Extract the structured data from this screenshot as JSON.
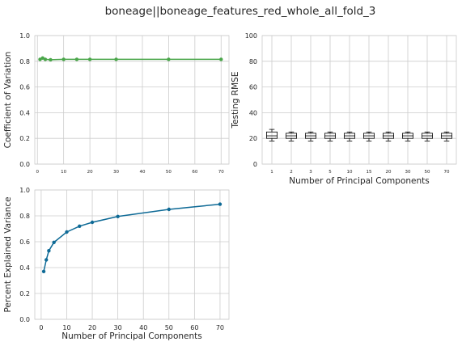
{
  "figure": {
    "title": "boneage||boneage_features_red_whole_all_fold_3"
  },
  "colors": {
    "cov_line": "#4aa64a",
    "cov_marker": "#4aa64a",
    "variance_line": "#0e6a96",
    "variance_marker": "#0e6a96",
    "box": "#000000",
    "grid": "#cccccc"
  },
  "chart_data": [
    {
      "id": "cov",
      "type": "line",
      "title": "",
      "xlabel": "",
      "ylabel": "Coefficient of Variation",
      "xlim": [
        -1,
        73
      ],
      "ylim": [
        0,
        1.0
      ],
      "xticks": [
        0,
        10,
        20,
        30,
        40,
        50,
        60,
        70
      ],
      "yticks": [
        0.0,
        0.2,
        0.4,
        0.6,
        0.8,
        1.0
      ],
      "grid": true,
      "series": [
        {
          "x": [
            1,
            2,
            3,
            5,
            10,
            15,
            20,
            30,
            50,
            70
          ],
          "y": [
            0.815,
            0.825,
            0.815,
            0.812,
            0.815,
            0.815,
            0.815,
            0.815,
            0.815,
            0.815
          ]
        }
      ]
    },
    {
      "id": "rmse",
      "type": "box",
      "title": "",
      "xlabel": "Number of Principal Components",
      "ylabel": "Testing RMSE",
      "ylim": [
        0,
        100
      ],
      "yticks": [
        0,
        20,
        40,
        60,
        80,
        100
      ],
      "categories": [
        "1",
        "2",
        "3",
        "5",
        "10",
        "15",
        "20",
        "30",
        "50",
        "70"
      ],
      "grid": true,
      "boxes": [
        {
          "whislo": 18,
          "q1": 20,
          "med": 22,
          "q3": 25,
          "whishi": 27
        },
        {
          "whislo": 18,
          "q1": 20,
          "med": 22,
          "q3": 24,
          "whishi": 25
        },
        {
          "whislo": 18,
          "q1": 20,
          "med": 22,
          "q3": 24,
          "whishi": 25
        },
        {
          "whislo": 18,
          "q1": 20,
          "med": 22,
          "q3": 24,
          "whishi": 25
        },
        {
          "whislo": 18,
          "q1": 20,
          "med": 22,
          "q3": 24,
          "whishi": 25
        },
        {
          "whislo": 18,
          "q1": 20,
          "med": 22,
          "q3": 24,
          "whishi": 25
        },
        {
          "whislo": 18,
          "q1": 20,
          "med": 22,
          "q3": 24,
          "whishi": 25
        },
        {
          "whislo": 18,
          "q1": 20,
          "med": 22,
          "q3": 24,
          "whishi": 25
        },
        {
          "whislo": 18,
          "q1": 20,
          "med": 22,
          "q3": 24,
          "whishi": 25
        },
        {
          "whislo": 18,
          "q1": 20,
          "med": 22,
          "q3": 24,
          "whishi": 25
        }
      ]
    },
    {
      "id": "variance",
      "type": "line",
      "title": "",
      "xlabel": "Number of Principal Components",
      "ylabel": "Percent Explained Variance",
      "xlim": [
        -2.5,
        73.5
      ],
      "ylim": [
        0,
        1.0
      ],
      "xticks": [
        0,
        10,
        20,
        30,
        40,
        50,
        60,
        70
      ],
      "yticks": [
        0.0,
        0.2,
        0.4,
        0.6,
        0.8,
        1.0
      ],
      "grid": true,
      "series": [
        {
          "x": [
            1,
            2,
            3,
            5,
            10,
            15,
            20,
            30,
            50,
            70
          ],
          "y": [
            0.37,
            0.46,
            0.53,
            0.595,
            0.675,
            0.72,
            0.75,
            0.795,
            0.85,
            0.89
          ]
        }
      ]
    }
  ]
}
